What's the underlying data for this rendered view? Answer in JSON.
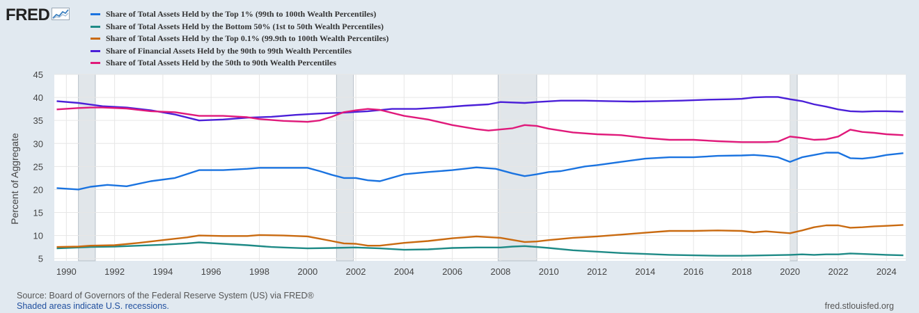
{
  "logo": {
    "text": "FRED",
    "icon": "line-chart-icon"
  },
  "footer": {
    "source": "Source: Board of Governors of the Federal Reserve System (US) via FRED®",
    "note": "Shaded areas indicate U.S. recessions.",
    "site": "fred.stlouisfed.org"
  },
  "chart_data": {
    "type": "line",
    "title": "",
    "xlabel": "",
    "ylabel": "Percent of Aggregate",
    "xlim": [
      1989.5,
      2024.8
    ],
    "ylim": [
      4.5,
      45
    ],
    "yticks": [
      5,
      10,
      15,
      20,
      25,
      30,
      35,
      40,
      45
    ],
    "xticks": [
      1990,
      1992,
      1994,
      1996,
      1998,
      2000,
      2002,
      2004,
      2006,
      2008,
      2010,
      2012,
      2014,
      2016,
      2018,
      2020,
      2022,
      2024
    ],
    "grid": true,
    "legend_position": "top-left",
    "recessions": [
      [
        1990.5,
        1991.2
      ],
      [
        2001.2,
        2001.9
      ],
      [
        2007.9,
        2009.5
      ],
      [
        2020.0,
        2020.3
      ]
    ],
    "series": [
      {
        "name": "Share of Total Assets Held by the Top 1% (99th to 100th Wealth Percentiles)",
        "color": "#1a73e0",
        "x": [
          1989.6,
          1990.5,
          1991.0,
          1991.7,
          1992.5,
          1993.5,
          1994.5,
          1995.5,
          1996.5,
          1997.5,
          1998.0,
          1999.0,
          2000.0,
          2000.5,
          2001.0,
          2001.5,
          2002.0,
          2002.5,
          2003.0,
          2004.0,
          2005.0,
          2006.0,
          2007.0,
          2007.8,
          2008.5,
          2009.0,
          2009.5,
          2010.0,
          2010.5,
          2011.0,
          2011.5,
          2012.0,
          2013.0,
          2014.0,
          2015.0,
          2016.0,
          2017.0,
          2018.0,
          2018.5,
          2019.0,
          2019.5,
          2020.0,
          2020.5,
          2021.0,
          2021.5,
          2022.0,
          2022.5,
          2023.0,
          2023.5,
          2024.0,
          2024.7
        ],
        "values": [
          20.3,
          20.0,
          20.6,
          21.0,
          20.7,
          21.8,
          22.5,
          24.2,
          24.2,
          24.5,
          24.7,
          24.7,
          24.7,
          24.0,
          23.2,
          22.5,
          22.5,
          22.0,
          21.8,
          23.3,
          23.8,
          24.2,
          24.8,
          24.5,
          23.5,
          22.9,
          23.3,
          23.8,
          24.0,
          24.5,
          25.0,
          25.3,
          26.0,
          26.7,
          27.0,
          27.0,
          27.3,
          27.4,
          27.5,
          27.3,
          27.0,
          26.0,
          27.0,
          27.5,
          28.0,
          28.0,
          26.8,
          26.7,
          27.0,
          27.5,
          27.9
        ]
      },
      {
        "name": "Share of Total Assets Held by the Bottom 50% (1st to 50th Wealth Percentiles)",
        "color": "#1e8a86",
        "x": [
          1989.6,
          1991.0,
          1992.0,
          1993.0,
          1994.0,
          1995.0,
          1995.5,
          1996.5,
          1997.5,
          1998.5,
          1999.0,
          2000.0,
          2001.0,
          2002.0,
          2003.0,
          2004.0,
          2005.0,
          2006.0,
          2007.0,
          2008.0,
          2008.5,
          2009.0,
          2009.5,
          2010.0,
          2011.0,
          2012.0,
          2013.0,
          2014.0,
          2015.0,
          2016.0,
          2017.0,
          2018.0,
          2019.0,
          2020.0,
          2020.5,
          2021.0,
          2021.5,
          2022.0,
          2022.5,
          2023.0,
          2024.0,
          2024.7
        ],
        "values": [
          7.2,
          7.5,
          7.6,
          7.8,
          8.0,
          8.3,
          8.5,
          8.2,
          7.9,
          7.5,
          7.4,
          7.2,
          7.3,
          7.4,
          7.2,
          6.9,
          7.0,
          7.3,
          7.4,
          7.4,
          7.6,
          7.7,
          7.5,
          7.3,
          6.8,
          6.5,
          6.2,
          6.0,
          5.8,
          5.7,
          5.6,
          5.6,
          5.7,
          5.8,
          5.9,
          5.8,
          5.9,
          5.9,
          6.1,
          6.0,
          5.8,
          5.7
        ]
      },
      {
        "name": "Share of Total Assets Held by the Top 0.1% (99.9th to 100th Wealth Percentiles)",
        "color": "#c96a10",
        "x": [
          1989.6,
          1990.5,
          1991.0,
          1992.0,
          1993.0,
          1994.0,
          1995.0,
          1995.5,
          1996.5,
          1997.5,
          1998.0,
          1999.0,
          2000.0,
          2000.5,
          2001.0,
          2001.5,
          2002.0,
          2002.5,
          2003.0,
          2004.0,
          2005.0,
          2006.0,
          2007.0,
          2008.0,
          2009.0,
          2009.5,
          2010.0,
          2011.0,
          2012.0,
          2013.0,
          2014.0,
          2015.0,
          2016.0,
          2017.0,
          2018.0,
          2018.5,
          2019.0,
          2020.0,
          2020.5,
          2021.0,
          2021.5,
          2022.0,
          2022.5,
          2023.0,
          2023.5,
          2024.0,
          2024.7
        ],
        "values": [
          7.5,
          7.6,
          7.8,
          7.9,
          8.4,
          9.0,
          9.6,
          10.0,
          9.9,
          9.9,
          10.1,
          10.0,
          9.8,
          9.3,
          8.8,
          8.3,
          8.2,
          7.8,
          7.8,
          8.4,
          8.8,
          9.4,
          9.8,
          9.5,
          8.6,
          8.7,
          9.0,
          9.5,
          9.8,
          10.2,
          10.6,
          11.0,
          11.0,
          11.1,
          11.0,
          10.7,
          10.9,
          10.5,
          11.1,
          11.8,
          12.2,
          12.2,
          11.7,
          11.8,
          12.0,
          12.1,
          12.3
        ]
      },
      {
        "name": "Share of Financial Assets Held by the 90th to 99th Wealth Percentiles",
        "color": "#4a1fd8",
        "x": [
          1989.6,
          1990.5,
          1991.5,
          1992.5,
          1993.5,
          1994.5,
          1995.5,
          1996.5,
          1997.5,
          1998.5,
          1999.5,
          2000.5,
          2001.5,
          2002.5,
          2003.5,
          2004.5,
          2005.5,
          2006.5,
          2007.5,
          2008.0,
          2009.0,
          2009.5,
          2010.5,
          2011.5,
          2012.5,
          2013.5,
          2014.5,
          2015.5,
          2016.5,
          2017.5,
          2018.0,
          2018.5,
          2019.0,
          2019.5,
          2020.0,
          2020.5,
          2021.0,
          2021.5,
          2022.0,
          2022.5,
          2023.0,
          2023.5,
          2024.0,
          2024.7
        ],
        "values": [
          39.2,
          38.8,
          38.1,
          37.8,
          37.2,
          36.3,
          35.0,
          35.2,
          35.6,
          35.8,
          36.2,
          36.5,
          36.7,
          37.0,
          37.5,
          37.5,
          37.8,
          38.2,
          38.5,
          39.0,
          38.8,
          39.0,
          39.3,
          39.3,
          39.2,
          39.1,
          39.2,
          39.3,
          39.5,
          39.6,
          39.7,
          40.0,
          40.1,
          40.1,
          39.6,
          39.2,
          38.5,
          38.0,
          37.4,
          37.0,
          36.9,
          37.0,
          37.0,
          36.9
        ]
      },
      {
        "name": "Share of Total Assets Held by the 50th to 90th Wealth Percentiles",
        "color": "#e0197a",
        "x": [
          1989.6,
          1990.5,
          1991.0,
          1991.5,
          1992.5,
          1993.5,
          1994.5,
          1995.5,
          1996.5,
          1997.5,
          1998.0,
          1999.0,
          2000.0,
          2000.5,
          2001.0,
          2001.5,
          2002.0,
          2002.5,
          2003.0,
          2004.0,
          2005.0,
          2006.0,
          2007.0,
          2007.5,
          2008.5,
          2009.0,
          2009.5,
          2010.0,
          2011.0,
          2012.0,
          2013.0,
          2014.0,
          2015.0,
          2016.0,
          2017.0,
          2018.0,
          2018.5,
          2019.0,
          2019.5,
          2020.0,
          2020.5,
          2021.0,
          2021.5,
          2022.0,
          2022.5,
          2023.0,
          2023.5,
          2024.0,
          2024.7
        ],
        "values": [
          37.4,
          37.7,
          37.8,
          37.8,
          37.6,
          37.0,
          36.8,
          36.0,
          36.0,
          35.7,
          35.3,
          34.9,
          34.7,
          35.0,
          35.8,
          36.8,
          37.2,
          37.5,
          37.3,
          36.0,
          35.2,
          34.0,
          33.1,
          32.8,
          33.3,
          34.0,
          33.8,
          33.2,
          32.4,
          32.0,
          31.8,
          31.2,
          30.8,
          30.8,
          30.5,
          30.3,
          30.3,
          30.3,
          30.4,
          31.5,
          31.2,
          30.8,
          30.9,
          31.5,
          33.0,
          32.5,
          32.3,
          32.0,
          31.8
        ]
      }
    ]
  }
}
